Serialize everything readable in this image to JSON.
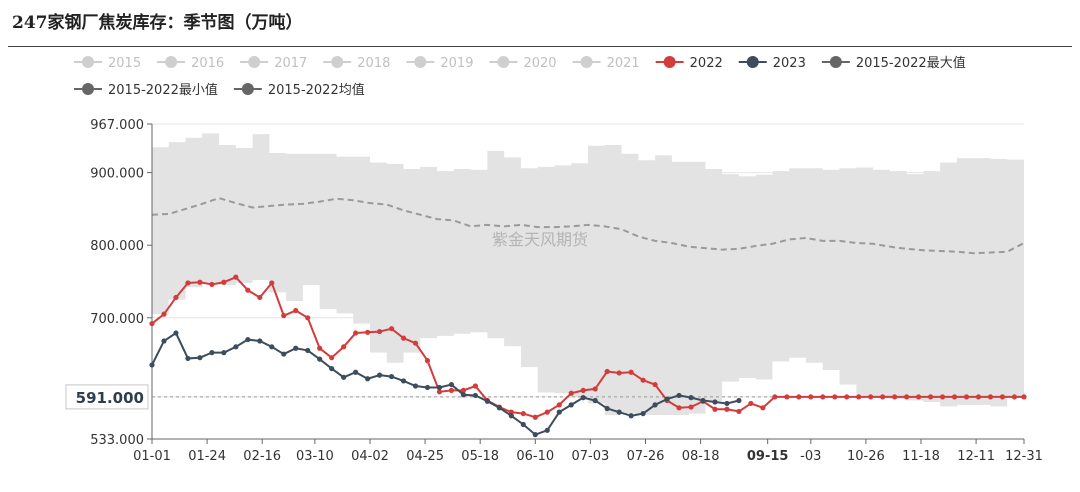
{
  "title": "247家钢厂焦炭库存：季节图（万吨）",
  "watermark": "紫金天风期货",
  "colors": {
    "band": "#e3e3e3",
    "series2022": "#d33c3c",
    "series2023": "#3d4d5d",
    "avg": "#9a9a9a",
    "inactive": "#cfcfcf",
    "grid": "#e6e6e6",
    "axis": "#666666"
  },
  "chart_data": {
    "type": "line",
    "title": "247家钢厂焦炭库存：季节图（万吨）",
    "ylim": [
      533,
      967
    ],
    "y_ticks": [
      "533.000",
      "591.000",
      "700.000",
      "800.000",
      "900.000",
      "967.000"
    ],
    "y_tick_values": [
      533,
      591,
      700,
      800,
      900,
      967
    ],
    "pointer_label": "591.000",
    "x_ticks": [
      "01-01",
      "01-24",
      "02-16",
      "03-10",
      "04-02",
      "04-25",
      "05-18",
      "06-10",
      "07-03",
      "07-26",
      "08-18",
      "09-15",
      "-03",
      "10-26",
      "11-18",
      "12-11",
      "12-31"
    ],
    "x_tick_days": [
      0,
      23,
      46,
      68,
      91,
      114,
      137,
      160,
      183,
      206,
      229,
      257,
      275,
      298,
      321,
      344,
      364
    ],
    "highlight_tick": "09-15",
    "legend": [
      {
        "name": "2015",
        "active": false
      },
      {
        "name": "2016",
        "active": false
      },
      {
        "name": "2017",
        "active": false
      },
      {
        "name": "2018",
        "active": false
      },
      {
        "name": "2019",
        "active": false
      },
      {
        "name": "2020",
        "active": false
      },
      {
        "name": "2021",
        "active": false
      },
      {
        "name": "2022",
        "active": true
      },
      {
        "name": "2023",
        "active": true
      },
      {
        "name": "2015-2022最大值",
        "active": true
      },
      {
        "name": "2015-2022最小值",
        "active": true
      },
      {
        "name": "2015-2022均值",
        "active": true
      }
    ],
    "max_2015_2022": {
      "days": [
        0,
        7,
        14,
        21,
        28,
        35,
        42,
        49,
        56,
        63,
        70,
        77,
        84,
        91,
        98,
        105,
        112,
        119,
        126,
        133,
        140,
        147,
        154,
        161,
        168,
        175,
        182,
        189,
        196,
        203,
        210,
        217,
        224,
        231,
        238,
        245,
        252,
        259,
        266,
        273,
        280,
        287,
        294,
        301,
        308,
        315,
        322,
        329,
        336,
        343,
        350,
        357,
        364
      ],
      "values": [
        935,
        942,
        948,
        954,
        938,
        934,
        953,
        927,
        926,
        926,
        926,
        922,
        922,
        914,
        912,
        905,
        908,
        902,
        905,
        904,
        930,
        921,
        906,
        908,
        910,
        913,
        937,
        938,
        926,
        917,
        924,
        915,
        915,
        905,
        898,
        895,
        897,
        902,
        906,
        906,
        904,
        906,
        907,
        904,
        902,
        898,
        902,
        914,
        920,
        920,
        919,
        918,
        918
      ]
    },
    "min_2015_2022": {
      "days": [
        0,
        7,
        14,
        21,
        28,
        35,
        42,
        49,
        56,
        63,
        70,
        77,
        84,
        91,
        98,
        105,
        112,
        119,
        126,
        133,
        140,
        147,
        154,
        161,
        168,
        175,
        182,
        189,
        196,
        203,
        210,
        217,
        224,
        231,
        238,
        245,
        252,
        259,
        266,
        273,
        280,
        287,
        294,
        301,
        308,
        315,
        322,
        329,
        336,
        343,
        350,
        357,
        364
      ],
      "values": [
        692,
        705,
        725,
        742,
        749,
        745,
        748,
        752,
        735,
        723,
        745,
        712,
        706,
        692,
        652,
        638,
        652,
        672,
        675,
        678,
        680,
        672,
        661,
        632,
        597,
        596,
        590,
        582,
        566,
        568,
        566,
        566,
        566,
        568,
        585,
        612,
        617,
        615,
        640,
        645,
        638,
        628,
        608,
        593,
        590,
        588,
        586,
        584,
        578,
        580,
        580,
        578,
        590
      ]
    },
    "avg_2015_2022": {
      "days": [
        0,
        7,
        14,
        21,
        28,
        35,
        42,
        49,
        56,
        63,
        70,
        77,
        84,
        91,
        98,
        105,
        112,
        119,
        126,
        133,
        140,
        147,
        154,
        161,
        168,
        175,
        182,
        189,
        196,
        203,
        210,
        217,
        224,
        231,
        238,
        245,
        252,
        259,
        266,
        273,
        280,
        287,
        294,
        301,
        308,
        315,
        322,
        329,
        336,
        343,
        350,
        357,
        364
      ],
      "values": [
        842,
        843,
        850,
        857,
        865,
        858,
        852,
        854,
        856,
        857,
        860,
        864,
        862,
        858,
        856,
        848,
        842,
        836,
        834,
        826,
        828,
        826,
        828,
        825,
        825,
        826,
        828,
        826,
        822,
        812,
        806,
        803,
        798,
        796,
        794,
        795,
        799,
        802,
        808,
        810,
        806,
        806,
        803,
        802,
        798,
        795,
        793,
        792,
        791,
        789,
        790,
        791,
        803
      ]
    },
    "series": [
      {
        "name": "2022",
        "days": [
          0,
          5,
          10,
          15,
          20,
          25,
          30,
          35,
          40,
          45,
          50,
          55,
          60,
          65,
          70,
          75,
          80,
          85,
          90,
          95,
          100,
          105,
          110,
          115,
          120,
          125,
          130,
          135,
          140,
          145,
          150,
          155,
          160,
          165,
          170,
          175,
          180,
          185,
          190,
          195,
          200,
          205,
          210,
          215,
          220,
          225,
          230,
          235,
          240,
          245,
          250,
          255,
          260,
          265,
          270,
          275,
          280,
          285,
          290,
          295,
          300,
          305,
          310,
          315,
          320,
          325,
          330,
          335,
          340,
          345,
          350,
          355,
          360,
          364
        ],
        "values": [
          692,
          705,
          728,
          748,
          749,
          746,
          749,
          756,
          738,
          728,
          748,
          703,
          710,
          700,
          658,
          645,
          660,
          679,
          680,
          681,
          685,
          672,
          665,
          641,
          598,
          600,
          600,
          606,
          586,
          577,
          570,
          568,
          563,
          570,
          580,
          596,
          600,
          602,
          626,
          624,
          625,
          614,
          608,
          586,
          576,
          577,
          585,
          574,
          574,
          571,
          582,
          576,
          591,
          591,
          591,
          591,
          591,
          591,
          591,
          591,
          591,
          591,
          591,
          591,
          591,
          591,
          591,
          591,
          591,
          591,
          591,
          591,
          591,
          591
        ]
      },
      {
        "name": "2023",
        "days": [
          0,
          5,
          10,
          15,
          20,
          25,
          30,
          35,
          40,
          45,
          50,
          55,
          60,
          65,
          70,
          75,
          80,
          85,
          90,
          95,
          100,
          105,
          110,
          115,
          120,
          125,
          130,
          135,
          140,
          145,
          150,
          155,
          160,
          165,
          170,
          175,
          180,
          185,
          190,
          195,
          200,
          205,
          210,
          215,
          220,
          225,
          230,
          235,
          240,
          245
        ],
        "values": [
          635,
          668,
          679,
          644,
          645,
          652,
          652,
          660,
          670,
          668,
          660,
          650,
          658,
          655,
          643,
          630,
          618,
          625,
          616,
          621,
          619,
          613,
          606,
          604,
          604,
          608,
          594,
          593,
          585,
          576,
          565,
          553,
          539,
          545,
          570,
          580,
          590,
          586,
          575,
          570,
          565,
          568,
          580,
          588,
          593,
          590,
          586,
          584,
          582,
          586
        ]
      }
    ]
  }
}
